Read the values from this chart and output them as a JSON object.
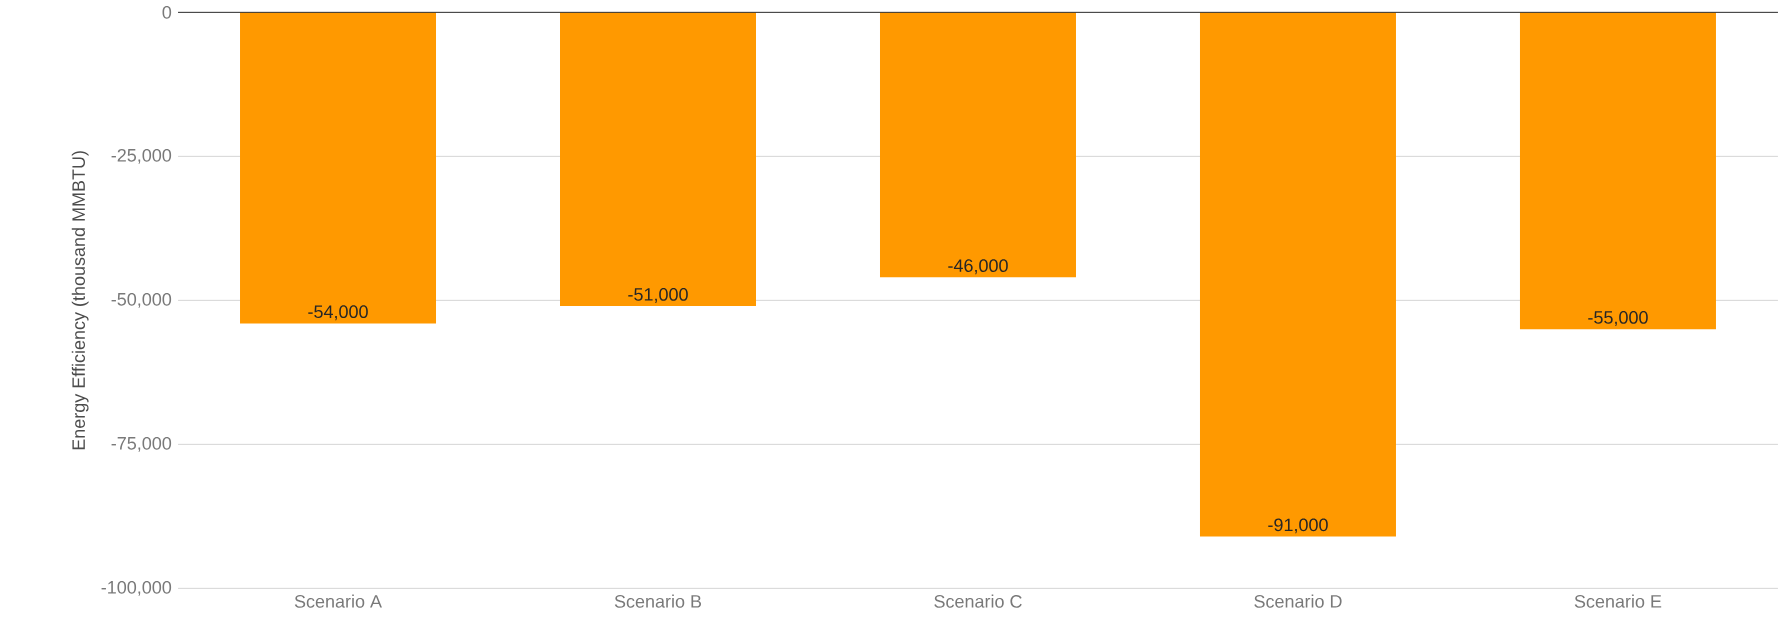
{
  "chart_data": {
    "type": "bar",
    "ylabel": "Energy Efficiency (thousand MMBTU)",
    "categories": [
      "Scenario A",
      "Scenario B",
      "Scenario C",
      "Scenario D",
      "Scenario E"
    ],
    "values": [
      -54000,
      -51000,
      -46000,
      -91000,
      -55000
    ],
    "value_labels": [
      "-54,000",
      "-51,000",
      "-46,000",
      "-91,000",
      "-55,000"
    ],
    "color": "#ff9900",
    "ylim": [
      -100000,
      0
    ],
    "yticks": [
      {
        "value": -100000,
        "label": "-100,000"
      },
      {
        "value": -75000,
        "label": "-75,000"
      },
      {
        "value": -50000,
        "label": "-50,000"
      },
      {
        "value": -25000,
        "label": "-25,000"
      },
      0
    ],
    "grid": "y"
  }
}
